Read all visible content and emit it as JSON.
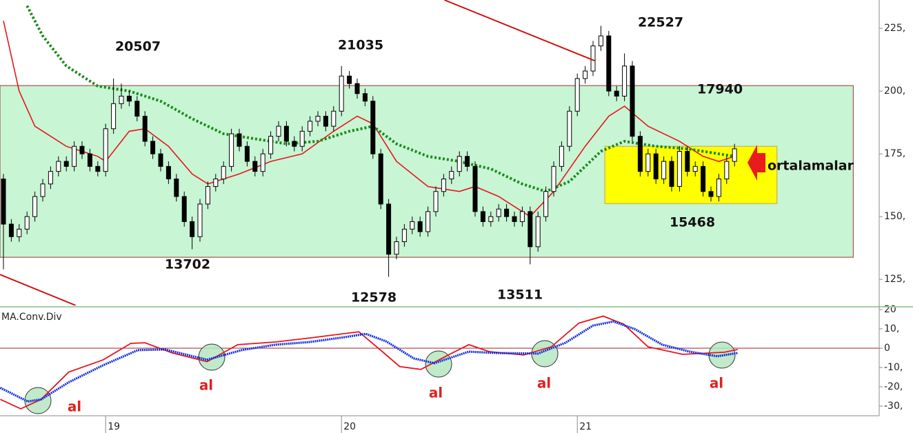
{
  "chart_data": [
    {
      "type": "candlestick",
      "ylim": [
        114.6,
        236.3
      ],
      "yticks": [
        {
          "value": 125,
          "label": "125,"
        },
        {
          "value": 150,
          "label": "150,"
        },
        {
          "value": 175,
          "label": "175,"
        },
        {
          "value": 200,
          "label": "200,"
        },
        {
          "value": 225,
          "label": "225,"
        }
      ],
      "up_color": "#ffffff",
      "down_color": "#000000",
      "open": [
        165,
        147,
        142,
        145,
        150,
        158,
        163,
        168,
        172,
        170,
        178,
        175,
        170,
        168,
        185,
        195,
        198,
        196,
        190,
        180,
        175,
        170,
        165,
        158,
        148,
        142,
        155,
        162,
        165,
        170,
        183,
        178,
        172,
        168,
        175,
        182,
        186,
        180,
        178,
        184,
        188,
        190,
        186,
        192,
        206,
        203,
        199,
        196,
        175,
        155,
        135,
        140,
        145,
        148,
        144,
        152,
        160,
        165,
        168,
        174,
        170,
        152,
        148,
        150,
        153,
        150,
        148,
        152,
        138,
        150,
        160,
        170,
        178,
        192,
        205,
        208,
        218,
        222,
        200,
        198,
        210,
        182,
        168,
        175,
        165,
        172,
        162,
        176,
        168,
        170,
        160,
        158,
        165,
        172
      ],
      "high": [
        167,
        149,
        147,
        152,
        160,
        165,
        170,
        174,
        174,
        180,
        180,
        177,
        172,
        187,
        205,
        203,
        200,
        198,
        192,
        182,
        177,
        172,
        167,
        160,
        150,
        157,
        164,
        167,
        172,
        185,
        185,
        180,
        174,
        177,
        184,
        188,
        188,
        182,
        186,
        190,
        192,
        192,
        194,
        210,
        208,
        205,
        201,
        198,
        177,
        157,
        142,
        147,
        150,
        150,
        154,
        162,
        167,
        170,
        176,
        176,
        172,
        154,
        152,
        155,
        155,
        152,
        154,
        154,
        152,
        162,
        172,
        180,
        194,
        207,
        210,
        220,
        226,
        224,
        202,
        215,
        212,
        184,
        177,
        177,
        174,
        174,
        178,
        178,
        172,
        172,
        162,
        167,
        174,
        179
      ],
      "low": [
        129,
        140,
        140,
        143,
        148,
        156,
        161,
        166,
        168,
        168,
        173,
        168,
        166,
        166,
        183,
        193,
        194,
        188,
        178,
        173,
        168,
        163,
        156,
        146,
        137,
        140,
        153,
        160,
        163,
        168,
        176,
        170,
        166,
        166,
        173,
        180,
        178,
        176,
        176,
        182,
        186,
        184,
        184,
        190,
        201,
        197,
        194,
        173,
        153,
        126,
        133,
        138,
        143,
        142,
        142,
        150,
        158,
        163,
        166,
        168,
        150,
        146,
        146,
        148,
        148,
        146,
        146,
        131,
        136,
        148,
        158,
        168,
        176,
        190,
        203,
        206,
        216,
        198,
        196,
        196,
        180,
        166,
        166,
        163,
        163,
        160,
        160,
        166,
        166,
        158,
        156,
        156,
        163,
        170
      ],
      "close": [
        147,
        142,
        145,
        150,
        158,
        163,
        168,
        172,
        170,
        178,
        175,
        170,
        168,
        185,
        195,
        198,
        196,
        190,
        180,
        175,
        170,
        165,
        158,
        148,
        142,
        155,
        162,
        165,
        170,
        183,
        178,
        172,
        168,
        175,
        182,
        186,
        180,
        178,
        184,
        188,
        190,
        186,
        192,
        206,
        203,
        199,
        196,
        175,
        155,
        135,
        140,
        145,
        148,
        144,
        152,
        160,
        165,
        168,
        174,
        170,
        152,
        148,
        150,
        153,
        150,
        148,
        152,
        138,
        150,
        160,
        170,
        178,
        192,
        205,
        208,
        218,
        222,
        200,
        198,
        210,
        182,
        168,
        175,
        165,
        172,
        162,
        176,
        168,
        170,
        160,
        158,
        165,
        172,
        177
      ],
      "overlays": [
        {
          "color": "#e8141c",
          "x": [
            0,
            2,
            4,
            8,
            12,
            13,
            16,
            18,
            21,
            24,
            26,
            30,
            34,
            38,
            42,
            45,
            47,
            50,
            54,
            58,
            60,
            63,
            66,
            67,
            70,
            74,
            77,
            79,
            82,
            86,
            89,
            91,
            93
          ],
          "values": [
            228,
            200,
            186,
            178,
            174,
            172,
            184,
            185,
            178,
            167,
            163,
            167,
            172,
            175,
            184,
            190,
            187,
            172,
            162,
            160,
            162,
            158,
            152,
            150,
            160,
            178,
            190,
            194,
            186,
            180,
            174,
            172,
            174
          ]
        },
        {
          "color": "#1a8a1a",
          "style": "dotted",
          "x": [
            3,
            5,
            8,
            12,
            16,
            20,
            24,
            28,
            32,
            36,
            40,
            44,
            47,
            50,
            54,
            58,
            62,
            66,
            69,
            72,
            76,
            79,
            83,
            87,
            91,
            93
          ],
          "values": [
            234,
            222,
            210,
            202,
            200,
            196,
            189,
            183,
            181,
            179,
            180,
            184,
            186,
            179,
            174,
            172,
            169,
            163,
            160,
            164,
            176,
            180,
            178,
            177,
            175,
            174
          ]
        }
      ],
      "trendlines": [
        {
          "color": "#d01010",
          "x": [
            56.1,
            75.2
          ],
          "values": [
            236.3,
            212.1
          ]
        },
        {
          "color": "#d01010",
          "x": [
            -0.44,
            9.2
          ],
          "values": [
            126.9,
            114.6
          ]
        }
      ],
      "zones": [
        {
          "color": "#c8f5d4",
          "border": "#a03030",
          "x": [
            -0.44,
            108.1
          ],
          "values": [
            133.8,
            202.2
          ]
        },
        {
          "color": "#ffff00",
          "border": "#c0a060",
          "x": [
            76.5,
            98.4
          ],
          "values": [
            155.2,
            178
          ]
        }
      ],
      "annotations": [
        "20507",
        "21035",
        "22527",
        "17940",
        "13702",
        "12578",
        "13511",
        "15468",
        "ortalamalar"
      ]
    },
    {
      "type": "line",
      "title": "MA.Conv.Div",
      "ylim": [
        -35,
        20.7
      ],
      "yticks": [
        {
          "value": -30,
          "label": "-30,"
        },
        {
          "value": -20,
          "label": "-20,"
        },
        {
          "value": -10,
          "label": "-10,"
        },
        0,
        {
          "value": 10,
          "label": "10,"
        },
        20
      ],
      "categories": [
        null,
        null,
        null,
        null,
        null,
        null,
        null,
        null,
        null,
        null,
        null,
        null,
        null,
        "19",
        null,
        null,
        null,
        null,
        null,
        null,
        null,
        null,
        null,
        null,
        null,
        null,
        null,
        null,
        null,
        null,
        null,
        null,
        null,
        null,
        null,
        null,
        null,
        null,
        null,
        null,
        null,
        null,
        null,
        "20",
        null,
        null,
        null,
        null,
        null,
        null,
        null,
        null,
        null,
        null,
        null,
        null,
        null,
        null,
        null,
        null,
        null,
        null,
        null,
        null,
        null,
        null,
        null,
        null,
        null,
        null,
        null,
        null,
        null,
        "21",
        null,
        null,
        null,
        null,
        null,
        null,
        null,
        null,
        null,
        null,
        null,
        null,
        null,
        null,
        null,
        null,
        null,
        null,
        null,
        null
      ],
      "series": [
        {
          "color": "#e8141c",
          "x": [
            -0.4,
            2.2,
            4.8,
            8.3,
            12.7,
            16.2,
            18,
            21.5,
            25.9,
            29.8,
            34.6,
            39,
            45.2,
            48.2,
            50.4,
            53.1,
            56.6,
            59.2,
            61.8,
            66.2,
            69.7,
            73.2,
            76.3,
            78.9,
            82,
            86.4,
            91.7,
            93.4
          ],
          "values": [
            -26.5,
            -31.4,
            -26.5,
            -12.4,
            -6,
            2.5,
            2.8,
            -2.5,
            -7,
            1.8,
            3.2,
            5.3,
            8.5,
            -1.8,
            -9.5,
            -11,
            -3.5,
            1.8,
            -1.8,
            -3.5,
            0.7,
            13,
            16.6,
            12.4,
            0.7,
            -3.2,
            -2.1,
            -0.7
          ]
        },
        {
          "color": "#1030e0",
          "x": [
            -0.4,
            3.1,
            4.8,
            8.3,
            12.7,
            17.1,
            20.6,
            25.9,
            30.3,
            34.6,
            39,
            43.4,
            46.1,
            48.7,
            52.2,
            54.8,
            59.2,
            62.7,
            68,
            71.5,
            75,
            77.6,
            80.3,
            83.8,
            87.3,
            90.8,
            93.4
          ],
          "values": [
            -20.5,
            -27.6,
            -26.5,
            -17.7,
            -8.8,
            -1,
            -0.7,
            -6,
            -1,
            1.8,
            3.2,
            5.7,
            7.4,
            3.5,
            -5.3,
            -7.8,
            -1.8,
            -2.5,
            -2.8,
            2.8,
            11.7,
            13.8,
            9.9,
            1.8,
            -1.8,
            -4.2,
            -2.5
          ]
        }
      ],
      "signals": [
        "al",
        "al",
        "al",
        "al",
        "al"
      ]
    }
  ]
}
